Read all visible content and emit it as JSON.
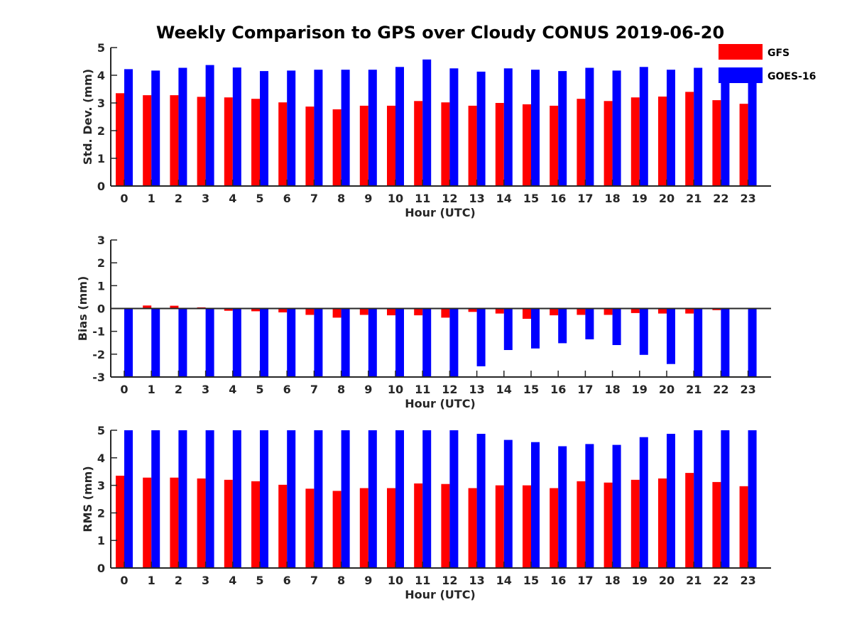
{
  "figure_title": "Weekly Comparison to GPS over Cloudy CONUS 2019-06-20",
  "legend": {
    "entries": [
      {
        "name": "GFS",
        "color": "#ff0000"
      },
      {
        "name": "GOES-16",
        "color": "#0000ff"
      }
    ],
    "placement": "top-right"
  },
  "chart_data": [
    {
      "type": "bar",
      "title": "",
      "xlabel": "Hour (UTC)",
      "ylabel": "Std. Dev. (mm)",
      "ylim": [
        0,
        5
      ],
      "yticks": [
        "0",
        "1",
        "2",
        "3",
        "4",
        "5"
      ],
      "categories": [
        "0",
        "1",
        "2",
        "3",
        "4",
        "5",
        "6",
        "7",
        "8",
        "9",
        "10",
        "11",
        "12",
        "13",
        "14",
        "15",
        "16",
        "17",
        "18",
        "19",
        "20",
        "21",
        "22",
        "23"
      ],
      "series": [
        {
          "name": "GFS",
          "color": "#ff0000",
          "values": [
            3.35,
            3.28,
            3.28,
            3.22,
            3.2,
            3.15,
            3.02,
            2.87,
            2.77,
            2.9,
            2.9,
            3.07,
            3.02,
            2.9,
            3.0,
            2.95,
            2.9,
            3.15,
            3.07,
            3.2,
            3.23,
            3.4,
            3.1,
            2.97
          ]
        },
        {
          "name": "GOES-16",
          "color": "#0000ff",
          "values": [
            4.22,
            4.17,
            4.27,
            4.37,
            4.28,
            4.15,
            4.17,
            4.2,
            4.2,
            4.2,
            4.3,
            4.57,
            4.25,
            4.13,
            4.25,
            4.2,
            4.15,
            4.27,
            4.17,
            4.3,
            4.2,
            4.27,
            3.87,
            3.72
          ]
        }
      ],
      "grid": false
    },
    {
      "type": "bar",
      "title": "",
      "xlabel": "Hour (UTC)",
      "ylabel": "Bias (mm)",
      "ylim": [
        -3,
        3
      ],
      "yticks": [
        "-3",
        "-2",
        "-1",
        "0",
        "1",
        "2",
        "3"
      ],
      "categories": [
        "0",
        "1",
        "2",
        "3",
        "4",
        "5",
        "6",
        "7",
        "8",
        "9",
        "10",
        "11",
        "12",
        "13",
        "14",
        "15",
        "16",
        "17",
        "18",
        "19",
        "20",
        "21",
        "22",
        "23"
      ],
      "series": [
        {
          "name": "GFS",
          "color": "#ff0000",
          "values": [
            -0.02,
            0.13,
            0.12,
            0.05,
            -0.1,
            -0.12,
            -0.17,
            -0.28,
            -0.4,
            -0.28,
            -0.3,
            -0.3,
            -0.4,
            -0.15,
            -0.22,
            -0.45,
            -0.3,
            -0.28,
            -0.28,
            -0.2,
            -0.22,
            -0.22,
            -0.07,
            -0.02
          ]
        },
        {
          "name": "GOES-16",
          "color": "#0000ff",
          "values": [
            -3.0,
            -3.0,
            -3.0,
            -3.0,
            -3.0,
            -3.0,
            -3.0,
            -3.0,
            -3.0,
            -3.0,
            -3.0,
            -3.0,
            -3.0,
            -2.53,
            -1.82,
            -1.75,
            -1.52,
            -1.35,
            -1.6,
            -2.03,
            -2.43,
            -3.0,
            -3.0,
            -3.0
          ]
        }
      ],
      "grid": false
    },
    {
      "type": "bar",
      "title": "",
      "xlabel": "Hour (UTC)",
      "ylabel": "RMS (mm)",
      "ylim": [
        0,
        5
      ],
      "yticks": [
        "0",
        "1",
        "2",
        "3",
        "4",
        "5"
      ],
      "categories": [
        "0",
        "1",
        "2",
        "3",
        "4",
        "5",
        "6",
        "7",
        "8",
        "9",
        "10",
        "11",
        "12",
        "13",
        "14",
        "15",
        "16",
        "17",
        "18",
        "19",
        "20",
        "21",
        "22",
        "23"
      ],
      "series": [
        {
          "name": "GFS",
          "color": "#ff0000",
          "values": [
            3.35,
            3.28,
            3.28,
            3.25,
            3.2,
            3.15,
            3.02,
            2.88,
            2.8,
            2.9,
            2.9,
            3.07,
            3.05,
            2.9,
            3.0,
            3.0,
            2.9,
            3.15,
            3.1,
            3.2,
            3.25,
            3.45,
            3.12,
            2.97
          ]
        },
        {
          "name": "GOES-16",
          "color": "#0000ff",
          "values": [
            5.0,
            5.0,
            5.0,
            5.0,
            5.0,
            5.0,
            5.0,
            5.0,
            5.0,
            5.0,
            5.0,
            5.0,
            5.0,
            4.87,
            4.65,
            4.57,
            4.42,
            4.5,
            4.47,
            4.75,
            4.87,
            5.0,
            5.0,
            5.0
          ]
        }
      ],
      "grid": false
    }
  ]
}
